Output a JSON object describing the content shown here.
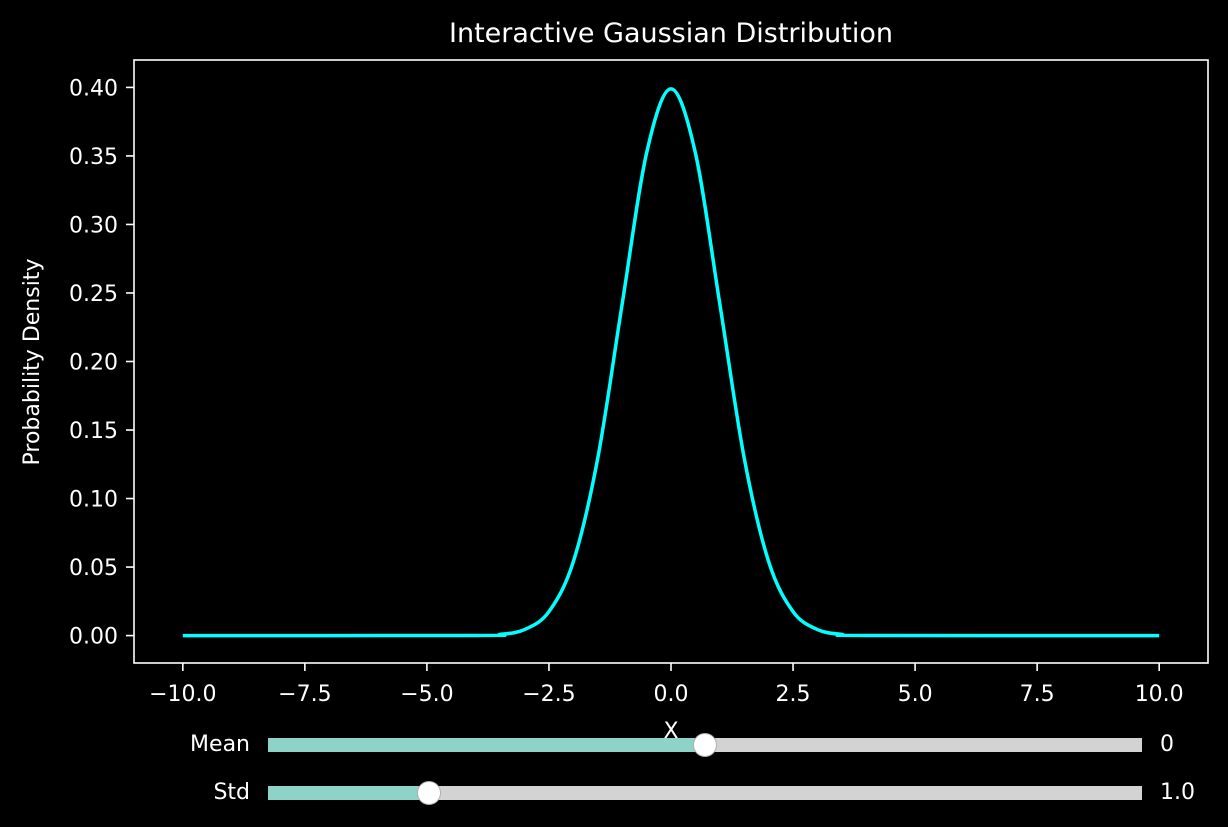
{
  "chart_data": {
    "type": "line",
    "title": "Interactive Gaussian Distribution",
    "xlabel": "X",
    "ylabel": "Probability Density",
    "xlim": [
      -11.0,
      11.0
    ],
    "ylim": [
      -0.02,
      0.42
    ],
    "x_ticks": [
      -10.0,
      -7.5,
      -5.0,
      -2.5,
      0.0,
      2.5,
      5.0,
      7.5,
      10.0
    ],
    "x_tick_labels": [
      "−10.0",
      "−7.5",
      "−5.0",
      "−2.5",
      "0.0",
      "2.5",
      "5.0",
      "7.5",
      "10.0"
    ],
    "y_ticks": [
      0.0,
      0.05,
      0.1,
      0.15,
      0.2,
      0.25,
      0.3,
      0.35,
      0.4
    ],
    "y_tick_labels": [
      "0.00",
      "0.05",
      "0.10",
      "0.15",
      "0.20",
      "0.25",
      "0.30",
      "0.35",
      "0.40"
    ],
    "grid": false,
    "series": [
      {
        "color": "#00ffff",
        "x": [
          -10,
          -4,
          -3.5,
          -3,
          -2.5,
          -2,
          -1.5,
          -1,
          -0.5,
          0,
          0.5,
          1,
          1.5,
          2,
          2.5,
          3,
          3.5,
          4,
          10
        ],
        "y": [
          0.0,
          0.0001,
          0.0009,
          0.0044,
          0.0175,
          0.054,
          0.1295,
          0.242,
          0.3521,
          0.3989,
          0.3521,
          0.242,
          0.1295,
          0.054,
          0.0175,
          0.0044,
          0.0009,
          0.0001,
          0.0
        ]
      }
    ]
  },
  "colors": {
    "background": "#000000",
    "foreground": "#ffffff",
    "curve": "#00ffff",
    "slider_fill": "#8fd3c8",
    "slider_track": "#d3d3d3"
  },
  "controls": {
    "mean": {
      "label": "Mean",
      "value_text": "0",
      "level": 0.5
    },
    "std": {
      "label": "Std",
      "value_text": "1.0",
      "level": 0.184
    }
  }
}
